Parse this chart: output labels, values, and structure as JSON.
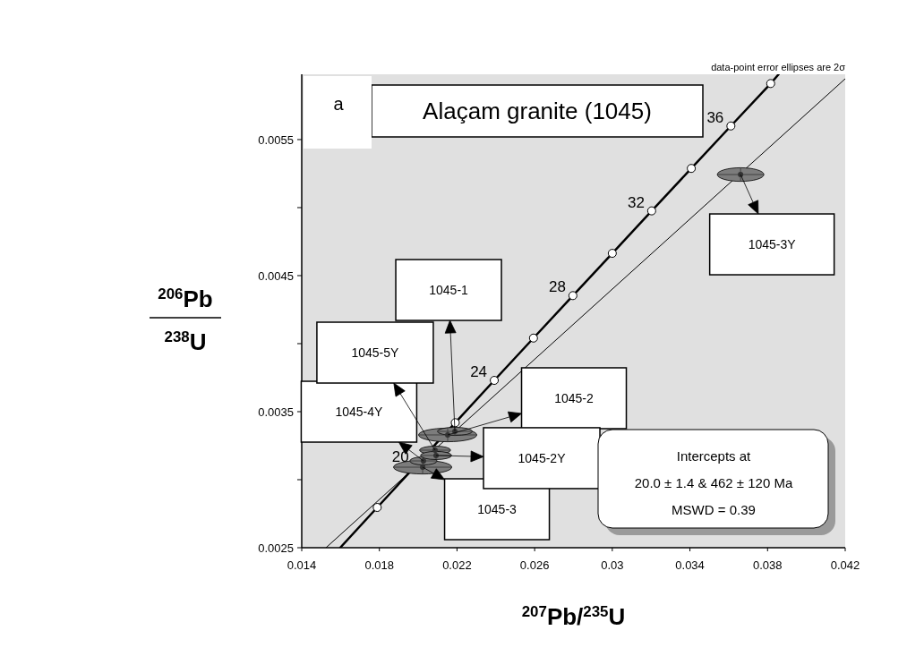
{
  "chart_data": {
    "type": "scatter",
    "title": "Alaçam granite (1045)",
    "xlabel": "$^{207}$Pb/$^{235}$U",
    "ylabel": "$^{206}$Pb/$^{238}$U",
    "xlim": [
      0.014,
      0.042
    ],
    "ylim": [
      0.0025,
      0.00598
    ],
    "xticks": [
      0.014,
      0.018,
      0.022,
      0.026,
      0.03,
      0.034,
      0.038,
      0.042
    ],
    "yticks": [
      0.0025,
      {
        "value": 0.003,
        "label": null
      },
      0.0035,
      {
        "value": 0.004,
        "label": null
      },
      0.0045,
      {
        "value": 0.005,
        "label": null
      },
      0.0055
    ],
    "grid": false,
    "series": [
      {
        "type": "line",
        "color": "#000000",
        "line_style": "solid",
        "x": [
          0.01598,
          0.01789,
          0.02191,
          0.02392,
          0.02594,
          0.02797,
          0.03,
          0.03203,
          0.03407,
          0.03611,
          0.03816,
          0.03857
        ],
        "values": [
          0.0025,
          0.002796,
          0.003419,
          0.00373,
          0.004041,
          0.004353,
          0.004664,
          0.004976,
          0.005288,
          0.0056,
          0.005912,
          0.00598
        ]
      },
      {
        "type": "line",
        "color": "#000000",
        "line_style": "solid",
        "x": [
          0.01525,
          0.042
        ],
        "values": [
          0.0025,
          0.005947
        ]
      },
      {
        "type": "scatter",
        "color": "#ffffff",
        "marker": "circle",
        "x": [
          0.01789,
          0.02191,
          0.02392,
          0.02594,
          0.02797,
          0.03,
          0.03203,
          0.03407,
          0.03611,
          0.03816
        ],
        "values": [
          0.002796,
          0.003419,
          0.00373,
          0.004041,
          0.004353,
          0.004664,
          0.004976,
          0.005288,
          0.0056,
          0.005912
        ]
      },
      {
        "type": "scatter",
        "color": "#333333",
        "x": [
          0.02152,
          0.02189,
          0.02023,
          0.02027,
          0.02087,
          0.02092,
          0.03661
        ],
        "values": [
          0.003329,
          0.003355,
          0.003092,
          0.003138,
          0.003217,
          0.003178,
          0.005243
        ],
        "xerrors": [
          0.0015,
          0.0009,
          0.0015,
          0.0007,
          0.0008,
          0.0008,
          0.0012
        ],
        "errors": [
          5e-05,
          3e-05,
          5e-05,
          3e-05,
          3e-05,
          3e-05,
          5e-05
        ]
      }
    ],
    "annotations": [
      "a",
      "data-point error ellipses are 2σ",
      "Intercepts at",
      "20.0 ± 1.4 & 462 ± 120 Ma",
      "MSWD = 0.39",
      "1045-2",
      "1045-1",
      "1045-3",
      "1045-4Y",
      "1045-5Y",
      "1045-2Y",
      "1045-3Y",
      {
        "text": "20",
        "x": 0.01989,
        "y": 0.003107
      },
      {
        "text": "24",
        "x": 0.02392,
        "y": 0.00373
      },
      {
        "text": "28",
        "x": 0.02797,
        "y": 0.004353
      },
      {
        "text": "32",
        "x": 0.03203,
        "y": 0.004976
      },
      {
        "text": "36",
        "x": 0.03611,
        "y": 0.0056
      }
    ]
  }
}
